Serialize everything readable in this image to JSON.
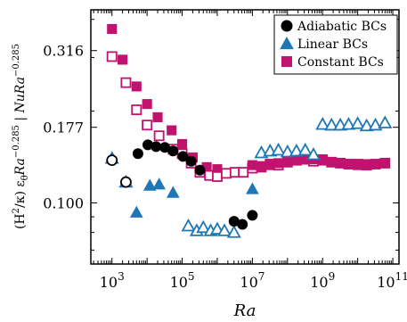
{
  "chart_data": {
    "type": "scatter",
    "xlabel_main": "Ra",
    "ylabel": {
      "part1": "(H",
      "sup2": "2",
      "part2": "/κ) ε",
      "sub_theta": "θ",
      "part3": "Ra",
      "exp1": "−0.285",
      "part4": " | ",
      "part5": "NuRa",
      "exp2": "−0.285"
    },
    "x_log": true,
    "y_log": true,
    "xlim": [
      250,
      150000000000
    ],
    "ylim": [
      0.063,
      0.43
    ],
    "x_ticks": [
      {
        "value": 1000,
        "base": "10",
        "exp": "3"
      },
      {
        "value": 100000,
        "base": "10",
        "exp": "5"
      },
      {
        "value": 10000000,
        "base": "10",
        "exp": "7"
      },
      {
        "value": 1000000000,
        "base": "10",
        "exp": "9"
      },
      {
        "value": 100000000000,
        "base": "10",
        "exp": "11"
      }
    ],
    "y_ticks": [
      {
        "value": 0.1,
        "label": "0.100"
      },
      {
        "value": 0.177,
        "label": "0.177"
      },
      {
        "value": 0.316,
        "label": "0.316"
      }
    ],
    "legend_position": "top-right",
    "series": [
      {
        "name": "Adiabatic BCs",
        "marker": "circle",
        "color": "#000000",
        "points": [
          {
            "x": 1000,
            "y": 0.138,
            "filled": false
          },
          {
            "x": 2500,
            "y": 0.117,
            "filled": false
          },
          {
            "x": 5500,
            "y": 0.145,
            "filled": true
          },
          {
            "x": 10500,
            "y": 0.155,
            "filled": true
          },
          {
            "x": 18000,
            "y": 0.153,
            "filled": true
          },
          {
            "x": 32000,
            "y": 0.152,
            "filled": true
          },
          {
            "x": 55000,
            "y": 0.148,
            "filled": true
          },
          {
            "x": 105000,
            "y": 0.142,
            "filled": true
          },
          {
            "x": 180000,
            "y": 0.137,
            "filled": true
          },
          {
            "x": 320000,
            "y": 0.128,
            "filled": true
          },
          {
            "x": 3000000,
            "y": 0.087,
            "filled": true
          },
          {
            "x": 5200000,
            "y": 0.085,
            "filled": true
          },
          {
            "x": 10000000,
            "y": 0.091,
            "filled": true
          }
        ]
      },
      {
        "name": "Linear BCs",
        "marker": "triangle",
        "color": "#1f77b4",
        "points": [
          {
            "x": 1000,
            "y": 0.14,
            "filled": false
          },
          {
            "x": 2500,
            "y": 0.117,
            "filled": false
          },
          {
            "x": 5000,
            "y": 0.093,
            "filled": true
          },
          {
            "x": 12000,
            "y": 0.114,
            "filled": true
          },
          {
            "x": 22000,
            "y": 0.115,
            "filled": true
          },
          {
            "x": 55000,
            "y": 0.108,
            "filled": true
          },
          {
            "x": 150000,
            "y": 0.084,
            "filled": false
          },
          {
            "x": 260000,
            "y": 0.081,
            "filled": false
          },
          {
            "x": 400000,
            "y": 0.083,
            "filled": false
          },
          {
            "x": 650000,
            "y": 0.081,
            "filled": false
          },
          {
            "x": 1000000,
            "y": 0.082,
            "filled": false
          },
          {
            "x": 1600000,
            "y": 0.081,
            "filled": false
          },
          {
            "x": 3000000,
            "y": 0.08,
            "filled": false
          },
          {
            "x": 10000000,
            "y": 0.111,
            "filled": true
          },
          {
            "x": 18000000,
            "y": 0.146,
            "filled": false
          },
          {
            "x": 32000000,
            "y": 0.148,
            "filled": false
          },
          {
            "x": 55000000,
            "y": 0.149,
            "filled": false
          },
          {
            "x": 100000000,
            "y": 0.147,
            "filled": false
          },
          {
            "x": 180000000,
            "y": 0.148,
            "filled": false
          },
          {
            "x": 320000000,
            "y": 0.149,
            "filled": false
          },
          {
            "x": 550000000,
            "y": 0.144,
            "filled": false
          },
          {
            "x": 1000000000,
            "y": 0.181,
            "filled": false
          },
          {
            "x": 1800000000,
            "y": 0.18,
            "filled": false
          },
          {
            "x": 3200000000,
            "y": 0.18,
            "filled": false
          },
          {
            "x": 5500000000,
            "y": 0.181,
            "filled": false
          },
          {
            "x": 10000000000,
            "y": 0.182,
            "filled": false
          },
          {
            "x": 18000000000,
            "y": 0.179,
            "filled": false
          },
          {
            "x": 32000000000,
            "y": 0.18,
            "filled": false
          },
          {
            "x": 60000000000,
            "y": 0.183,
            "filled": false
          }
        ]
      },
      {
        "name": "Constant BCs",
        "marker": "square",
        "color": "#c0136e",
        "points": [
          {
            "x": 1000,
            "y": 0.372,
            "filled": true
          },
          {
            "x": 2000,
            "y": 0.295,
            "filled": true
          },
          {
            "x": 5000,
            "y": 0.241,
            "filled": true
          },
          {
            "x": 10000,
            "y": 0.211,
            "filled": true
          },
          {
            "x": 20000,
            "y": 0.191,
            "filled": true
          },
          {
            "x": 50000,
            "y": 0.173,
            "filled": true
          },
          {
            "x": 100000,
            "y": 0.156,
            "filled": true
          },
          {
            "x": 200000,
            "y": 0.141,
            "filled": true
          },
          {
            "x": 500000,
            "y": 0.131,
            "filled": true
          },
          {
            "x": 1000000,
            "y": 0.129,
            "filled": true
          },
          {
            "x": 1000,
            "y": 0.302,
            "filled": false
          },
          {
            "x": 2500,
            "y": 0.248,
            "filled": false
          },
          {
            "x": 5000,
            "y": 0.202,
            "filled": false
          },
          {
            "x": 10000,
            "y": 0.18,
            "filled": false
          },
          {
            "x": 22000,
            "y": 0.166,
            "filled": false
          },
          {
            "x": 55000,
            "y": 0.15,
            "filled": false
          },
          {
            "x": 100000,
            "y": 0.145,
            "filled": false
          },
          {
            "x": 180000,
            "y": 0.135,
            "filled": false
          },
          {
            "x": 320000,
            "y": 0.126,
            "filled": false
          },
          {
            "x": 600000,
            "y": 0.123,
            "filled": false
          },
          {
            "x": 1000000,
            "y": 0.122,
            "filled": false
          },
          {
            "x": 1800000,
            "y": 0.125,
            "filled": false
          },
          {
            "x": 3200000,
            "y": 0.126,
            "filled": false
          },
          {
            "x": 5500000,
            "y": 0.126,
            "filled": false
          },
          {
            "x": 10000000,
            "y": 0.13,
            "filled": false
          },
          {
            "x": 18000000,
            "y": 0.131,
            "filled": false
          },
          {
            "x": 32000000,
            "y": 0.134,
            "filled": false
          },
          {
            "x": 55000000,
            "y": 0.133,
            "filled": false
          },
          {
            "x": 100000000,
            "y": 0.136,
            "filled": false
          },
          {
            "x": 180000000,
            "y": 0.138,
            "filled": false
          },
          {
            "x": 320000000,
            "y": 0.139,
            "filled": false
          },
          {
            "x": 550000000,
            "y": 0.137,
            "filled": false
          },
          {
            "x": 1000000000,
            "y": 0.138,
            "filled": false
          },
          {
            "x": 1800000000,
            "y": 0.136,
            "filled": false
          },
          {
            "x": 3200000000,
            "y": 0.135,
            "filled": false
          },
          {
            "x": 5500000000,
            "y": 0.134,
            "filled": false
          },
          {
            "x": 10000000000,
            "y": 0.134,
            "filled": false
          },
          {
            "x": 18000000000,
            "y": 0.133,
            "filled": false
          },
          {
            "x": 32000000000,
            "y": 0.134,
            "filled": false
          },
          {
            "x": 60000000000,
            "y": 0.135,
            "filled": false
          },
          {
            "x": 10000000,
            "y": 0.133,
            "filled": true
          },
          {
            "x": 18000000,
            "y": 0.132,
            "filled": true
          },
          {
            "x": 32000000,
            "y": 0.133,
            "filled": true
          },
          {
            "x": 55000000,
            "y": 0.135,
            "filled": true
          },
          {
            "x": 100000000,
            "y": 0.137,
            "filled": true
          },
          {
            "x": 180000000,
            "y": 0.139,
            "filled": true
          },
          {
            "x": 320000000,
            "y": 0.14,
            "filled": true
          },
          {
            "x": 550000000,
            "y": 0.139,
            "filled": true
          },
          {
            "x": 1000000000,
            "y": 0.139,
            "filled": true
          },
          {
            "x": 1800000000,
            "y": 0.136,
            "filled": true
          },
          {
            "x": 3200000000,
            "y": 0.135,
            "filled": true
          },
          {
            "x": 5500000000,
            "y": 0.134,
            "filled": true
          },
          {
            "x": 10000000000,
            "y": 0.133,
            "filled": true
          },
          {
            "x": 18000000000,
            "y": 0.134,
            "filled": true
          },
          {
            "x": 32000000000,
            "y": 0.134,
            "filled": true
          },
          {
            "x": 60000000000,
            "y": 0.135,
            "filled": true
          }
        ]
      }
    ]
  }
}
